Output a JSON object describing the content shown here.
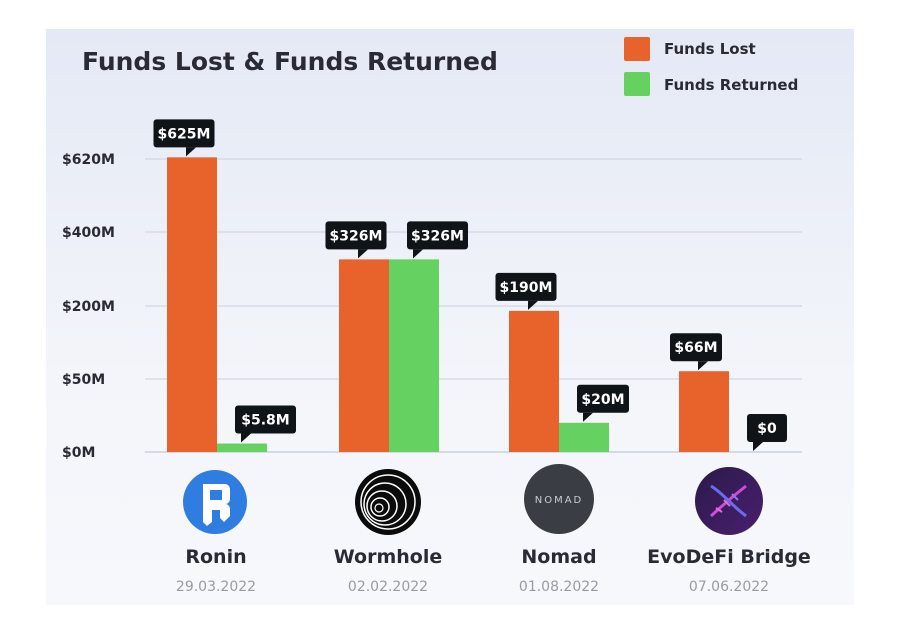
{
  "colors": {
    "funds_lost": "#e8622c",
    "funds_returned": "#64d160",
    "label_bg": "#0f1419",
    "grid": "#c9d0df"
  },
  "chart_data": {
    "type": "bar",
    "title": "Funds Lost & Funds Returned",
    "legend_position": "top-right",
    "grid": true,
    "yaxis_scale": "non-linear (ticks evenly spaced)",
    "y_ticks": [
      {
        "value": 0,
        "label": "$0M"
      },
      {
        "value": 50,
        "label": "$50M"
      },
      {
        "value": 200,
        "label": "$200M"
      },
      {
        "value": 400,
        "label": "$400M"
      },
      {
        "value": 620,
        "label": "$620M"
      }
    ],
    "categories": [
      "Ronin",
      "Wormhole",
      "Nomad",
      "EvoDeFi Bridge"
    ],
    "dates": [
      "29.03.2022",
      "02.02.2022",
      "01.08.2022",
      "07.06.2022"
    ],
    "logos": [
      "ronin-logo-icon",
      "wormhole-logo-icon",
      "nomad-logo-icon",
      "evodefi-dna-logo-icon"
    ],
    "logo_text": {
      "nomad": "NOMAD"
    },
    "series": [
      {
        "name": "Funds Lost",
        "color": "#e8622c",
        "values": [
          625,
          326,
          190,
          66
        ],
        "labels": [
          "$625M",
          "$326M",
          "$190M",
          "$66M"
        ]
      },
      {
        "name": "Funds Returned",
        "color": "#64d160",
        "values": [
          5.8,
          326,
          20,
          0
        ],
        "labels": [
          "$5.8M",
          "$326M",
          "$20M",
          "$0"
        ]
      }
    ]
  }
}
